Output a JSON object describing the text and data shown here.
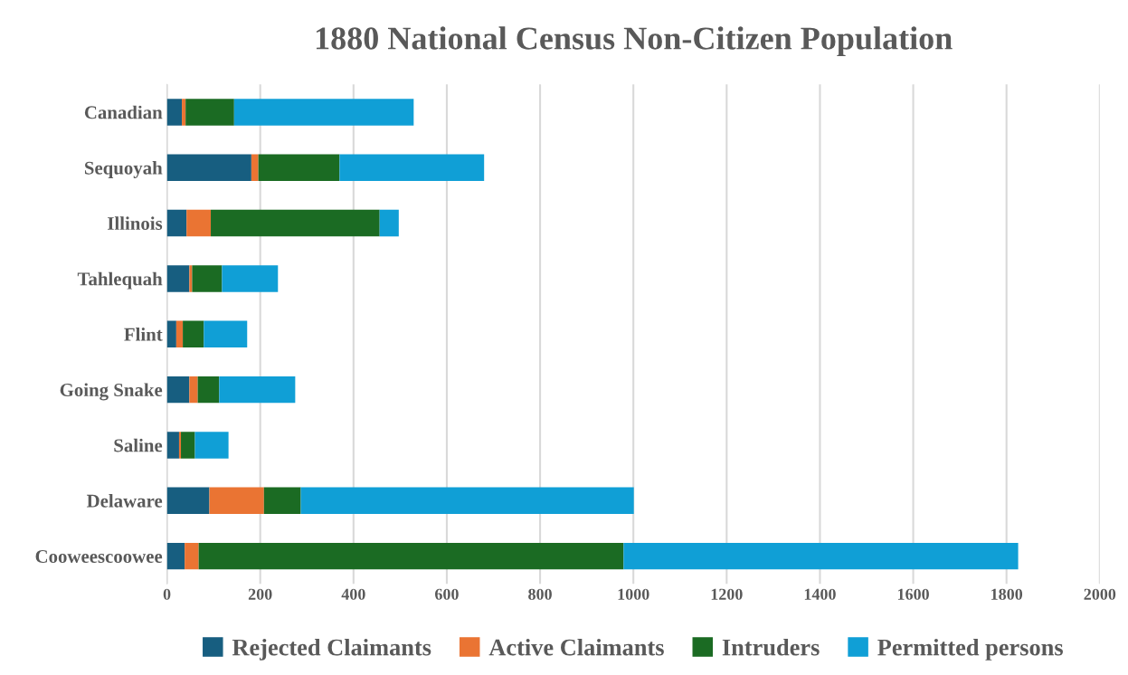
{
  "chart_data": {
    "type": "bar",
    "orientation": "horizontal",
    "stacked": true,
    "title": "1880 National Census Non-Citizen Population",
    "categories": [
      "Canadian",
      "Sequoyah",
      "Illinois",
      "Tahlequah",
      "Flint",
      "Going Snake",
      "Saline",
      "Delaware",
      "Cooweescoowee"
    ],
    "series": [
      {
        "name": "Rejected Claimants",
        "color": "#175e80",
        "values": [
          32,
          181,
          42,
          48,
          20,
          48,
          26,
          91,
          38
        ]
      },
      {
        "name": "Active Claimants",
        "color": "#ea7433",
        "values": [
          8,
          15,
          52,
          6,
          14,
          18,
          4,
          117,
          30
        ]
      },
      {
        "name": "Intruders",
        "color": "#1b6b23",
        "values": [
          104,
          174,
          362,
          64,
          45,
          46,
          30,
          79,
          911
        ]
      },
      {
        "name": "Permitted persons",
        "color": "#109fd6",
        "values": [
          385,
          310,
          41,
          120,
          93,
          163,
          72,
          714,
          846
        ]
      }
    ],
    "xlim": [
      0,
      2000
    ],
    "xticks": [
      0,
      200,
      400,
      600,
      800,
      1000,
      1200,
      1400,
      1600,
      1800,
      2000
    ],
    "grid": "x",
    "legend": "bottom"
  }
}
